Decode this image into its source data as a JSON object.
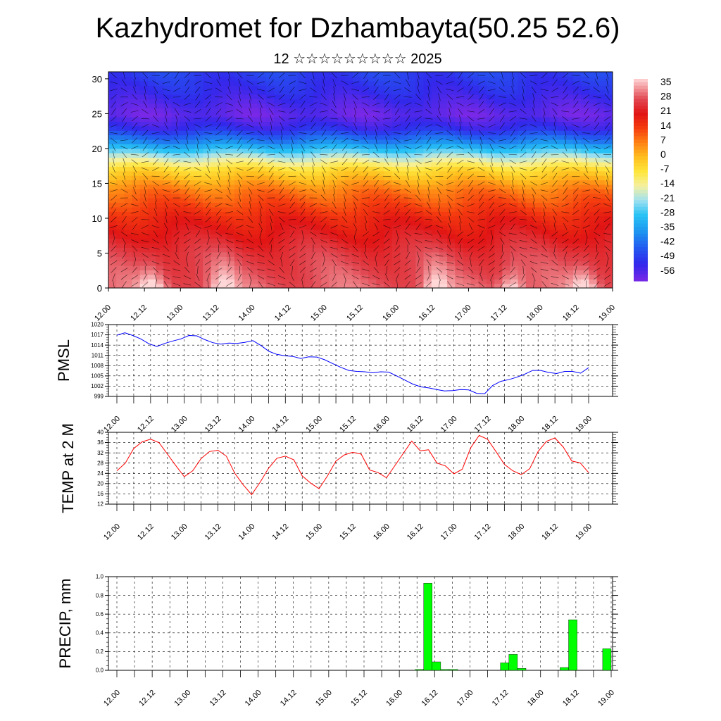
{
  "title": "Kazhydromet for Dzhambayta(50.25 52.6)",
  "subtitle": "12 ☆☆☆☆☆☆☆☆☆ 2025",
  "chart_data": [
    {
      "type": "heatmap",
      "name": "temperature-wind cross-section",
      "x_ticks": [
        "12.00",
        "12.12",
        "13.00",
        "13.12",
        "14.00",
        "14.12",
        "15.00",
        "15.12",
        "16.00",
        "16.12",
        "17.00",
        "17.12",
        "18.00",
        "18.12",
        "19.00"
      ],
      "y_ticks": [
        "0",
        "5",
        "10",
        "15",
        "20",
        "25",
        "30"
      ],
      "ylim": [
        0,
        31
      ],
      "colorbar_labels": [
        "35",
        "28",
        "21",
        "14",
        "7",
        "0",
        "-7",
        "-14",
        "-21",
        "-28",
        "-35",
        "-42",
        "-49",
        "-56"
      ],
      "colorbar_range": [
        -60,
        38
      ],
      "vertical_profile": [
        [
          0,
          30
        ],
        [
          5,
          26
        ],
        [
          10,
          18
        ],
        [
          14,
          8
        ],
        [
          17,
          -5
        ],
        [
          19,
          -20
        ],
        [
          21,
          -38
        ],
        [
          23,
          -52
        ],
        [
          25,
          -58
        ],
        [
          28,
          -52
        ],
        [
          31,
          -48
        ]
      ],
      "surface_warm_centers_x": [
        1.2,
        3.2,
        9.1,
        11.2,
        13.2
      ]
    },
    {
      "type": "line",
      "ylabel": "PMSL",
      "x_ticks": [
        "12.00",
        "12.12",
        "13.00",
        "13.12",
        "14.00",
        "14.12",
        "15.00",
        "15.12",
        "16.00",
        "16.12",
        "17.00",
        "17.12",
        "18.00",
        "18.12",
        "19.00"
      ],
      "y_ticks": [
        "1020",
        "1017",
        "1014",
        "1011",
        "1008",
        "1005",
        "1002",
        "999"
      ],
      "ylim": [
        999,
        1020
      ],
      "color": "#0000ff",
      "values": [
        1016.9,
        1017.6,
        1016.8,
        1015.8,
        1014.4,
        1013.6,
        1014.5,
        1015.2,
        1015.8,
        1016.8,
        1016.7,
        1015.6,
        1014.7,
        1014.3,
        1014.6,
        1014.5,
        1014.8,
        1015.3,
        1013.9,
        1012.2,
        1011.3,
        1010.9,
        1010.7,
        1010.1,
        1010.6,
        1010.5,
        1009.7,
        1008.6,
        1007.5,
        1006.6,
        1006.3,
        1006.2,
        1005.9,
        1006.2,
        1006.1,
        1005.0,
        1003.8,
        1002.6,
        1001.8,
        1001.5,
        1001.0,
        1000.6,
        1000.7,
        1001.0,
        1000.9,
        999.9,
        999.8,
        1002.2,
        1003.4,
        1003.9,
        1004.6,
        1005.5,
        1006.6,
        1006.6,
        1006.0,
        1005.7,
        1006.3,
        1006.3,
        1005.8,
        1007.4
      ]
    },
    {
      "type": "line",
      "ylabel": "TEMP at 2 M",
      "x_ticks": [
        "12.00",
        "12.12",
        "13.00",
        "13.12",
        "14.00",
        "14.12",
        "15.00",
        "15.12",
        "16.00",
        "16.12",
        "17.00",
        "17.12",
        "18.00",
        "18.12",
        "19.00"
      ],
      "y_ticks": [
        "40",
        "36",
        "32",
        "28",
        "24",
        "20",
        "16",
        "12"
      ],
      "ylim": [
        12,
        40
      ],
      "color": "#ff0000",
      "values": [
        25.0,
        28.0,
        33.7,
        36.3,
        37.3,
        36.0,
        31.5,
        27.0,
        22.7,
        25.0,
        29.8,
        32.5,
        33.0,
        30.7,
        24.0,
        19.5,
        15.7,
        20.5,
        26.0,
        29.9,
        30.7,
        29.3,
        23.0,
        20.2,
        18.0,
        23.0,
        28.8,
        31.2,
        32.2,
        31.5,
        25.3,
        24.3,
        22.3,
        27.0,
        31.8,
        36.6,
        32.8,
        33.2,
        28.0,
        26.9,
        23.8,
        25.6,
        34.0,
        38.8,
        37.3,
        32.5,
        27.5,
        25.0,
        23.5,
        25.8,
        32.5,
        36.5,
        37.8,
        34.2,
        28.8,
        28.1,
        24.3
      ]
    },
    {
      "type": "bar",
      "ylabel": "PRECIP, mm",
      "x_ticks": [
        "12.00",
        "12.12",
        "13.00",
        "13.12",
        "14.00",
        "14.12",
        "15.00",
        "15.12",
        "16.00",
        "16.12",
        "17.00",
        "17.12",
        "18.00",
        "18.12",
        "19.00"
      ],
      "y_ticks": [
        "1.0",
        "0.8",
        "0.6",
        "0.4",
        "0.2",
        "0.0"
      ],
      "ylim": [
        0,
        1.0
      ],
      "color": "#00ff00",
      "values": [
        0,
        0,
        0,
        0,
        0,
        0,
        0,
        0,
        0,
        0,
        0,
        0,
        0,
        0,
        0,
        0,
        0,
        0,
        0,
        0,
        0,
        0,
        0,
        0,
        0,
        0,
        0,
        0,
        0,
        0,
        0,
        0,
        0,
        0,
        0,
        0.01,
        0.93,
        0.09,
        0.01,
        0.01,
        0,
        0,
        0,
        0,
        0,
        0.08,
        0.17,
        0.02,
        0,
        0,
        0,
        0,
        0.03,
        0.54,
        0,
        0,
        0,
        0.23
      ]
    }
  ]
}
